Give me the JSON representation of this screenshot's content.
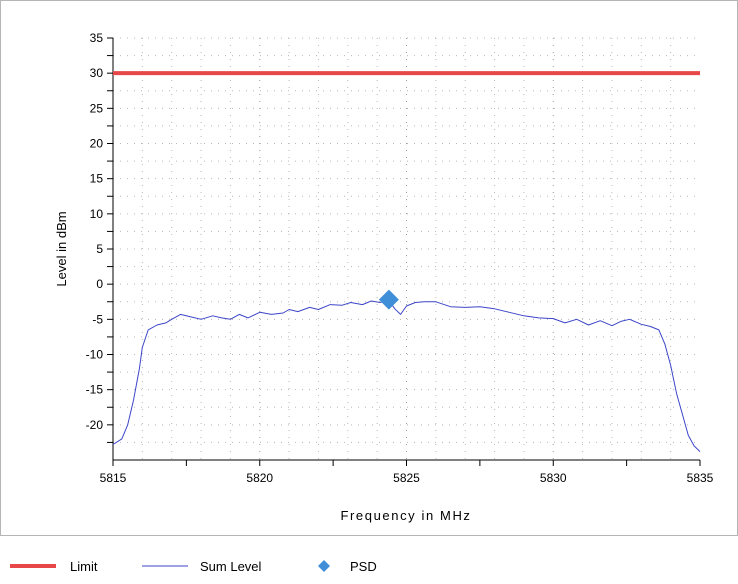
{
  "chart_data": {
    "type": "line",
    "xlabel": "Frequency in MHz",
    "ylabel": "Level in dBm",
    "xlim": [
      5815,
      5835
    ],
    "ylim": [
      -25,
      35
    ],
    "xticks": [
      5815,
      5820,
      5825,
      5830,
      5835
    ],
    "yticks": [
      35,
      30,
      25,
      20,
      15,
      10,
      5,
      0,
      -5,
      -10,
      -15,
      -20
    ],
    "grid": true,
    "legend_position": "bottom",
    "colors": {
      "limit": "#e8474a",
      "sum_level": "#3c46c8",
      "psd": "#3f8fd8"
    },
    "series": [
      {
        "name": "Limit",
        "style": "thick-line",
        "x": [
          5815,
          5835
        ],
        "y": [
          30,
          30
        ]
      },
      {
        "name": "Sum Level",
        "style": "thin-line",
        "x": [
          5815.0,
          5815.3,
          5815.5,
          5815.7,
          5815.9,
          5816.0,
          5816.2,
          5816.5,
          5816.8,
          5817.0,
          5817.3,
          5817.6,
          5818.0,
          5818.4,
          5818.7,
          5819.0,
          5819.3,
          5819.6,
          5820.0,
          5820.4,
          5820.8,
          5821.0,
          5821.3,
          5821.7,
          5822.0,
          5822.4,
          5822.8,
          5823.1,
          5823.5,
          5823.8,
          5824.1,
          5824.4,
          5824.6,
          5824.8,
          5825.0,
          5825.3,
          5825.6,
          5826.0,
          5826.5,
          5827.0,
          5827.5,
          5828.0,
          5828.5,
          5829.0,
          5829.5,
          5830.0,
          5830.4,
          5830.8,
          5831.2,
          5831.6,
          5832.0,
          5832.3,
          5832.6,
          5833.0,
          5833.3,
          5833.6,
          5833.8,
          5834.0,
          5834.2,
          5834.4,
          5834.6,
          5834.8,
          5835.0
        ],
        "y": [
          -22.8,
          -22.0,
          -20.0,
          -16.5,
          -12.0,
          -9.0,
          -6.5,
          -5.8,
          -5.5,
          -5.0,
          -4.3,
          -4.6,
          -5.0,
          -4.5,
          -4.8,
          -5.0,
          -4.3,
          -4.8,
          -4.0,
          -4.3,
          -4.1,
          -3.6,
          -3.9,
          -3.3,
          -3.6,
          -2.9,
          -3.0,
          -2.6,
          -2.9,
          -2.4,
          -2.6,
          -2.3,
          -3.5,
          -4.3,
          -3.1,
          -2.6,
          -2.5,
          -2.5,
          -3.2,
          -3.3,
          -3.2,
          -3.5,
          -4.0,
          -4.5,
          -4.8,
          -4.9,
          -5.5,
          -5.0,
          -5.8,
          -5.2,
          -5.9,
          -5.3,
          -5.0,
          -5.7,
          -6.0,
          -6.5,
          -8.5,
          -11.5,
          -15.5,
          -18.5,
          -21.5,
          -23.0,
          -23.8
        ]
      },
      {
        "name": "PSD",
        "style": "diamond-marker",
        "x": [
          5824.4
        ],
        "y": [
          -2.2
        ]
      }
    ]
  }
}
